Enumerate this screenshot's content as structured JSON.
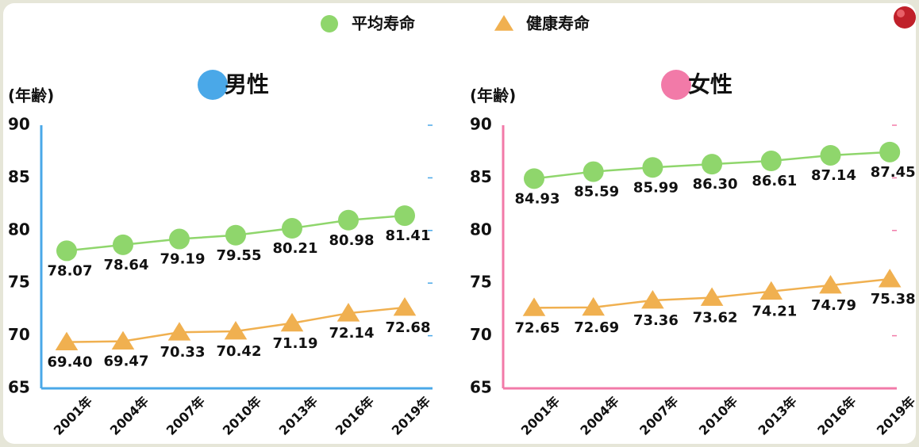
{
  "chart_data": [
    {
      "type": "line",
      "title": "男性",
      "title_color": "#4aa8e8",
      "axis_color": "#4aa8e8",
      "y_label": "(年齢)",
      "categories": [
        "2001年",
        "2004年",
        "2007年",
        "2010年",
        "2013年",
        "2016年",
        "2019年"
      ],
      "ylim": [
        65,
        90
      ],
      "yticks": [
        65,
        70,
        75,
        80,
        85,
        90
      ],
      "series": [
        {
          "name": "平均寿命",
          "color": "#8fd66c",
          "marker": "circle",
          "values": [
            78.07,
            78.64,
            79.19,
            79.55,
            80.21,
            80.98,
            81.41
          ],
          "value_labels": [
            "78.07",
            "78.64",
            "79.19",
            "79.55",
            "80.21",
            "80.98",
            "81.41"
          ]
        },
        {
          "name": "健康寿命",
          "color": "#f0b050",
          "marker": "triangle",
          "values": [
            69.4,
            69.47,
            70.33,
            70.42,
            71.19,
            72.14,
            72.68
          ],
          "value_labels": [
            "69.40",
            "69.47",
            "70.33",
            "70.42",
            "71.19",
            "72.14",
            "72.68"
          ]
        }
      ]
    },
    {
      "type": "line",
      "title": "女性",
      "title_color": "#f27aa8",
      "axis_color": "#f27aa8",
      "y_label": "(年齢)",
      "categories": [
        "2001年",
        "2004年",
        "2007年",
        "2010年",
        "2013年",
        "2016年",
        "2019年"
      ],
      "ylim": [
        65,
        90
      ],
      "yticks": [
        65,
        70,
        75,
        80,
        85,
        90
      ],
      "series": [
        {
          "color": "#8fd66c",
          "marker": "circle",
          "values": [
            84.93,
            85.59,
            85.99,
            86.3,
            86.61,
            87.14,
            87.45
          ],
          "value_labels": [
            "84.93",
            "85.59",
            "85.99",
            "86.30",
            "86.61",
            "87.14",
            "87.45"
          ]
        },
        {
          "color": "#f0b050",
          "marker": "triangle",
          "values": [
            72.65,
            72.69,
            73.36,
            73.62,
            74.21,
            74.79,
            75.38
          ],
          "value_labels": [
            "72.65",
            "72.69",
            "73.36",
            "73.62",
            "74.21",
            "74.79",
            "75.38"
          ]
        }
      ]
    }
  ]
}
